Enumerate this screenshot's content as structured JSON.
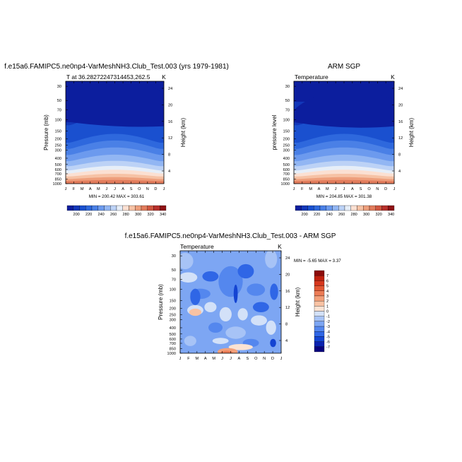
{
  "colors": {
    "abs_scale": [
      "#00007f",
      "#0c1e9e",
      "#1237b9",
      "#1a50cf",
      "#2e68dd",
      "#4a80e6",
      "#6c9aee",
      "#92b6f3",
      "#bcd2f6",
      "#e6eef8",
      "#fbe0d2",
      "#f6c2a5",
      "#ee9f7c",
      "#e27c5c",
      "#d05640",
      "#b7302b",
      "#8f1115"
    ],
    "diff_scale": [
      "#08007e",
      "#0a22b0",
      "#1444d2",
      "#2f66e6",
      "#5487ee",
      "#7da6f3",
      "#a7c3f6",
      "#d3e1f8",
      "#fbe3d3",
      "#f8c2a3",
      "#f3a07a",
      "#ec7c56",
      "#e35834",
      "#d6371e",
      "#c0200f",
      "#8c0a0a"
    ]
  },
  "panels": [
    {
      "title": "f.e15a6.FAMIPC5.ne0np4-VarMeshNH3.Club_Test.003 (yrs 1979-1981)",
      "left_label": "T at 36.28272247314453,262.5",
      "right_label": "K",
      "ylabel": "Pressure (mb)",
      "ylabel2": "Height (km)",
      "stats": "MIN = 200.42  MAX = 303.61"
    },
    {
      "title": "ARM SGP",
      "left_label": "Temperature",
      "right_label": "K",
      "ylabel": "pressure level",
      "ylabel2": "Height (km)",
      "stats": "MIN = 204.85  MAX = 301.38"
    },
    {
      "title": "f.e15a6.FAMIPC5.ne0np4-VarMeshNH3.Club_Test.003 - ARM SGP",
      "left_label": "Temperature",
      "right_label": "K",
      "ylabel": "Pressure (mb)",
      "ylabel2": "Height (km)",
      "stats": "MIN =  -5.65  MAX =   3.37"
    }
  ],
  "chart_data": [
    {
      "type": "heatmap",
      "title": "f.e15a6.FAMIPC5.ne0np4-VarMeshNH3.Club_Test.003 (yrs 1979-1981)",
      "x_ticks": [
        "J",
        "F",
        "M",
        "A",
        "M",
        "J",
        "J",
        "A",
        "S",
        "O",
        "N",
        "D",
        "J"
      ],
      "y_ticks": [
        "30",
        "50",
        "70",
        "100",
        "150",
        "200",
        "250",
        "300",
        "400",
        "500",
        "600",
        "700",
        "850",
        "1000"
      ],
      "y_scale": "log pressure, reversed",
      "ylim": [
        1000,
        25
      ],
      "y2_ticks": [
        "24",
        "20",
        "16",
        "12",
        "8",
        "4"
      ],
      "colorbar_labels": [
        "200",
        "220",
        "240",
        "260",
        "280",
        "300",
        "320",
        "340"
      ],
      "colorbar_range": [
        190,
        350
      ],
      "min": 200.42,
      "max": 303.61
    },
    {
      "type": "heatmap",
      "title": "ARM SGP",
      "x_ticks": [
        "J",
        "F",
        "M",
        "A",
        "M",
        "J",
        "J",
        "A",
        "S",
        "O",
        "N",
        "D",
        "J"
      ],
      "y_ticks": [
        "30",
        "50",
        "70",
        "100",
        "150",
        "200",
        "250",
        "300",
        "400",
        "500",
        "600",
        "700",
        "850",
        "1000"
      ],
      "y_scale": "log pressure, reversed",
      "ylim": [
        1000,
        25
      ],
      "y2_ticks": [
        "24",
        "20",
        "16",
        "12",
        "8",
        "4"
      ],
      "colorbar_labels": [
        "200",
        "220",
        "240",
        "260",
        "280",
        "300",
        "320",
        "340"
      ],
      "colorbar_range": [
        190,
        350
      ],
      "min": 204.85,
      "max": 301.38
    },
    {
      "type": "heatmap",
      "title": "f.e15a6.FAMIPC5.ne0np4-VarMeshNH3.Club_Test.003 - ARM SGP",
      "x_ticks": [
        "J",
        "F",
        "M",
        "A",
        "M",
        "J",
        "J",
        "A",
        "S",
        "O",
        "N",
        "D",
        "J"
      ],
      "y_ticks": [
        "30",
        "50",
        "70",
        "100",
        "150",
        "200",
        "250",
        "300",
        "400",
        "500",
        "600",
        "700",
        "850",
        "1000"
      ],
      "y_scale": "log pressure, reversed",
      "ylim": [
        1000,
        25
      ],
      "y2_ticks": [
        "24",
        "20",
        "16",
        "12",
        "8",
        "4"
      ],
      "colorbar_labels": [
        "7",
        "6",
        "5",
        "4",
        "3",
        "2",
        "1",
        "0",
        "-1",
        "-2",
        "-3",
        "-4",
        "-5",
        "-6",
        "-7"
      ],
      "colorbar_range": [
        -8,
        8
      ],
      "min": -5.65,
      "max": 3.37
    }
  ]
}
